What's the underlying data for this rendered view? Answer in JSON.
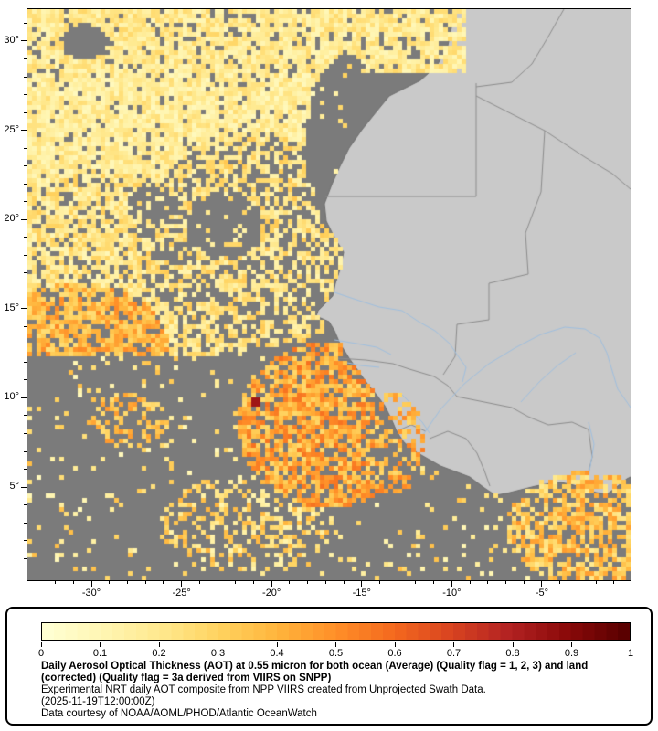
{
  "map": {
    "extent": {
      "lon_min": -33.55,
      "lon_max": -0.08,
      "lat_min": -0.22,
      "lat_max": 31.79
    },
    "x_axis": {
      "ticks": [
        {
          "label": "-30°",
          "lon": -30
        },
        {
          "label": "-25°",
          "lon": -25
        },
        {
          "label": "-20°",
          "lon": -20
        },
        {
          "label": "-15°",
          "lon": -15
        },
        {
          "label": "-10°",
          "lon": -10
        },
        {
          "label": "-5°",
          "lon": -5
        }
      ],
      "minor_step_deg": 1
    },
    "y_axis": {
      "ticks": [
        {
          "label": "30°",
          "lat": 30
        },
        {
          "label": "25°",
          "lat": 25
        },
        {
          "label": "20°",
          "lat": 20
        },
        {
          "label": "15°",
          "lat": 15
        },
        {
          "label": "10°",
          "lat": 10
        },
        {
          "label": "5°",
          "lat": 5
        }
      ],
      "minor_step_deg": 1
    },
    "colors": {
      "no_data_ocean": "#7b7b7b",
      "land": "#c9c9c9",
      "coastline": "#6e6e6e",
      "country_border": "#8c8c8c",
      "river": "#9fbfdf",
      "frame": "#000000"
    }
  },
  "colorbar": {
    "min": 0,
    "max": 1,
    "tick_labels": [
      "0",
      "0.1",
      "0.2",
      "0.3",
      "0.4",
      "0.5",
      "0.6",
      "0.7",
      "0.8",
      "0.9",
      "1"
    ],
    "ramp_stops": [
      "#FFFFD2",
      "#FFF5B1",
      "#FFE88C",
      "#FFD25E",
      "#FFB43C",
      "#FF8F28",
      "#F4691E",
      "#D94420",
      "#B22222",
      "#8B0A0A",
      "#5A0000"
    ]
  },
  "caption": {
    "title": "Daily Aerosol Optical Thickness (AOT) at 0.55 micron for both ocean (Average) (Quality flag = 1, 2, 3) and land (corrected) (Quality flag = 3a derived from VIIRS on SNPP)",
    "line2": "Experimental NRT daily AOT composite from NPP VIIRS created from Unprojected Swath Data.",
    "timestamp": "(2025-11-19T12:00:00Z)",
    "courtesy": "Data courtesy of NOAA/AOML/PHOD/Atlantic OceanWatch"
  }
}
